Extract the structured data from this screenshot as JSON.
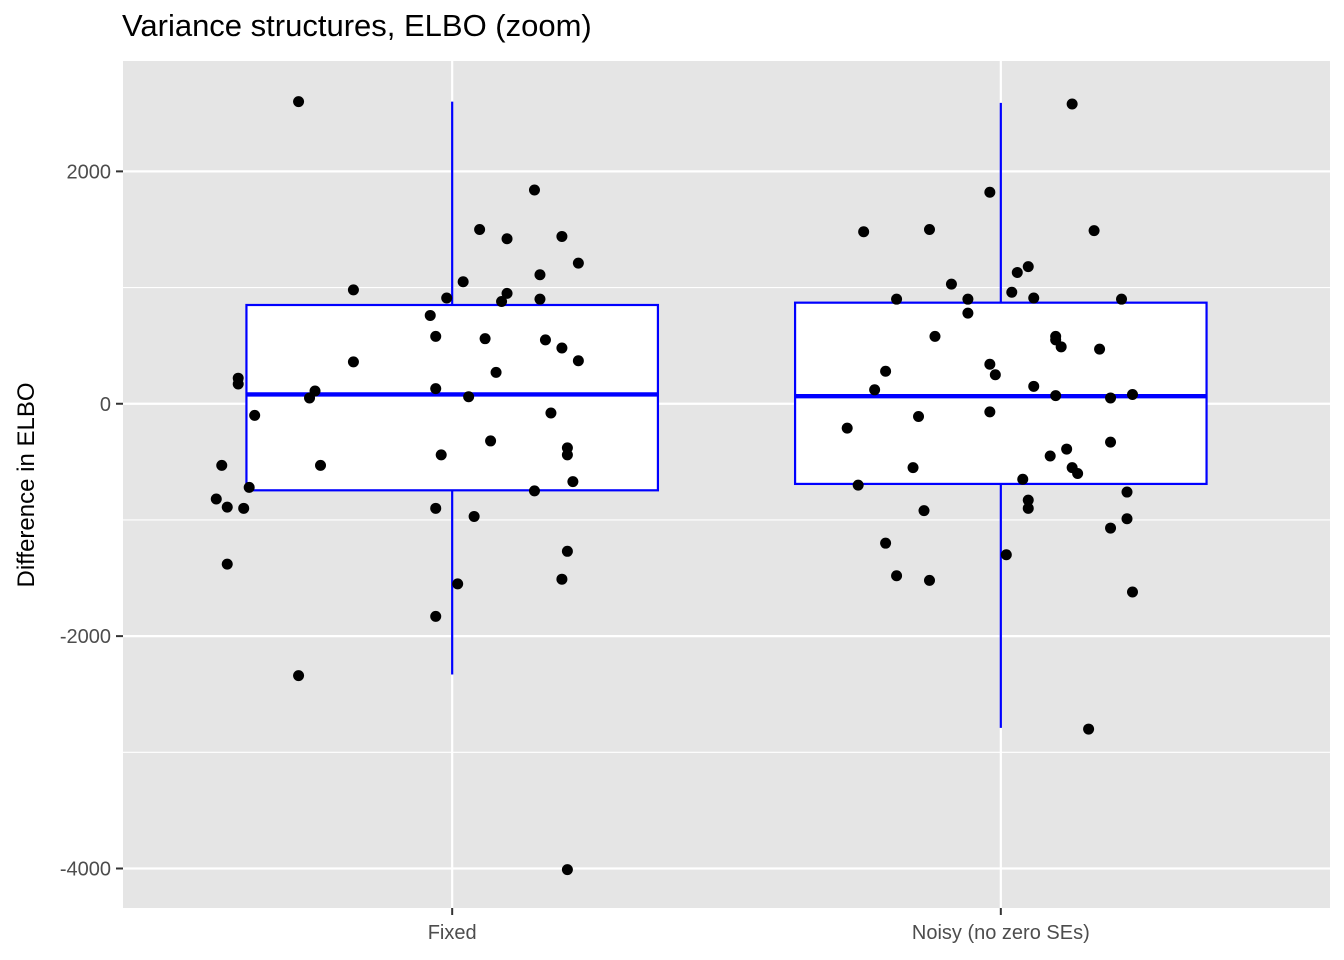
{
  "chart_data": {
    "type": "boxplot",
    "title": "Variance structures, ELBO (zoom)",
    "xlabel": "",
    "ylabel": "Difference in ELBO",
    "ylim": [
      -4340,
      2950
    ],
    "yticks": [
      -4000,
      -2000,
      0,
      2000
    ],
    "ytick_labels": [
      "-4000",
      "-2000",
      "0",
      "2000"
    ],
    "grid": true,
    "colors": {
      "panel": "#e5e5e5",
      "grid": "#ffffff",
      "box": "#0000ff",
      "points": "#000000"
    },
    "categories": [
      "Fixed",
      "Noisy (no zero SEs)"
    ],
    "boxes": [
      {
        "category": "Fixed",
        "lower_whisker": -2330,
        "q1": -745,
        "median": 80,
        "q3": 850,
        "upper_whisker": 2600
      },
      {
        "category": "Noisy (no zero SEs)",
        "lower_whisker": -2790,
        "q1": -690,
        "median": 65,
        "q3": 870,
        "upper_whisker": 2590
      }
    ],
    "points": [
      {
        "x": 0.72,
        "y": 2600
      },
      {
        "x": 1.15,
        "y": 1840
      },
      {
        "x": 1.05,
        "y": 1500
      },
      {
        "x": 1.2,
        "y": 1440
      },
      {
        "x": 1.1,
        "y": 1420
      },
      {
        "x": 1.23,
        "y": 1210
      },
      {
        "x": 1.16,
        "y": 1110
      },
      {
        "x": 1.02,
        "y": 1050
      },
      {
        "x": 0.82,
        "y": 980
      },
      {
        "x": 1.1,
        "y": 950
      },
      {
        "x": 0.99,
        "y": 910
      },
      {
        "x": 1.16,
        "y": 900
      },
      {
        "x": 1.09,
        "y": 880
      },
      {
        "x": 0.96,
        "y": 760
      },
      {
        "x": 0.97,
        "y": 580
      },
      {
        "x": 1.06,
        "y": 560
      },
      {
        "x": 1.17,
        "y": 550
      },
      {
        "x": 1.2,
        "y": 480
      },
      {
        "x": 1.23,
        "y": 370
      },
      {
        "x": 0.82,
        "y": 360
      },
      {
        "x": 1.08,
        "y": 270
      },
      {
        "x": 0.61,
        "y": 220
      },
      {
        "x": 0.61,
        "y": 170
      },
      {
        "x": 0.97,
        "y": 130
      },
      {
        "x": 0.75,
        "y": 110
      },
      {
        "x": 1.03,
        "y": 60
      },
      {
        "x": 0.74,
        "y": 50
      },
      {
        "x": 0.64,
        "y": -100
      },
      {
        "x": 1.18,
        "y": -80
      },
      {
        "x": 1.07,
        "y": -320
      },
      {
        "x": 1.21,
        "y": -380
      },
      {
        "x": 0.98,
        "y": -440
      },
      {
        "x": 1.21,
        "y": -440
      },
      {
        "x": 0.58,
        "y": -530
      },
      {
        "x": 0.76,
        "y": -530
      },
      {
        "x": 1.22,
        "y": -670
      },
      {
        "x": 0.63,
        "y": -720
      },
      {
        "x": 1.15,
        "y": -750
      },
      {
        "x": 0.57,
        "y": -820
      },
      {
        "x": 0.59,
        "y": -890
      },
      {
        "x": 0.62,
        "y": -900
      },
      {
        "x": 0.97,
        "y": -900
      },
      {
        "x": 1.04,
        "y": -970
      },
      {
        "x": 1.21,
        "y": -1270
      },
      {
        "x": 0.59,
        "y": -1380
      },
      {
        "x": 1.2,
        "y": -1510
      },
      {
        "x": 1.01,
        "y": -1550
      },
      {
        "x": 0.97,
        "y": -1830
      },
      {
        "x": 0.72,
        "y": -2340
      },
      {
        "x": 1.21,
        "y": -4010
      },
      {
        "x": 2.13,
        "y": 2580
      },
      {
        "x": 1.98,
        "y": 1820
      },
      {
        "x": 1.75,
        "y": 1480
      },
      {
        "x": 1.87,
        "y": 1500
      },
      {
        "x": 2.17,
        "y": 1490
      },
      {
        "x": 2.05,
        "y": 1180
      },
      {
        "x": 2.03,
        "y": 1130
      },
      {
        "x": 1.91,
        "y": 1030
      },
      {
        "x": 2.02,
        "y": 960
      },
      {
        "x": 2.06,
        "y": 910
      },
      {
        "x": 1.81,
        "y": 900
      },
      {
        "x": 1.94,
        "y": 900
      },
      {
        "x": 2.22,
        "y": 900
      },
      {
        "x": 1.94,
        "y": 780
      },
      {
        "x": 1.88,
        "y": 580
      },
      {
        "x": 2.1,
        "y": 580
      },
      {
        "x": 2.1,
        "y": 550
      },
      {
        "x": 2.11,
        "y": 490
      },
      {
        "x": 2.18,
        "y": 470
      },
      {
        "x": 1.98,
        "y": 340
      },
      {
        "x": 1.79,
        "y": 280
      },
      {
        "x": 1.99,
        "y": 250
      },
      {
        "x": 2.06,
        "y": 150
      },
      {
        "x": 1.77,
        "y": 120
      },
      {
        "x": 2.24,
        "y": 80
      },
      {
        "x": 2.1,
        "y": 70
      },
      {
        "x": 2.2,
        "y": 50
      },
      {
        "x": 1.98,
        "y": -70
      },
      {
        "x": 1.85,
        "y": -110
      },
      {
        "x": 1.72,
        "y": -210
      },
      {
        "x": 2.2,
        "y": -330
      },
      {
        "x": 2.12,
        "y": -390
      },
      {
        "x": 2.09,
        "y": -450
      },
      {
        "x": 1.84,
        "y": -550
      },
      {
        "x": 2.13,
        "y": -550
      },
      {
        "x": 2.14,
        "y": -600
      },
      {
        "x": 2.04,
        "y": -650
      },
      {
        "x": 1.74,
        "y": -700
      },
      {
        "x": 2.23,
        "y": -760
      },
      {
        "x": 2.05,
        "y": -830
      },
      {
        "x": 2.05,
        "y": -900
      },
      {
        "x": 1.86,
        "y": -920
      },
      {
        "x": 2.23,
        "y": -990
      },
      {
        "x": 2.2,
        "y": -1070
      },
      {
        "x": 1.79,
        "y": -1200
      },
      {
        "x": 2.01,
        "y": -1300
      },
      {
        "x": 1.81,
        "y": -1480
      },
      {
        "x": 1.87,
        "y": -1520
      },
      {
        "x": 2.24,
        "y": -1620
      },
      {
        "x": 2.16,
        "y": -2800
      }
    ]
  }
}
